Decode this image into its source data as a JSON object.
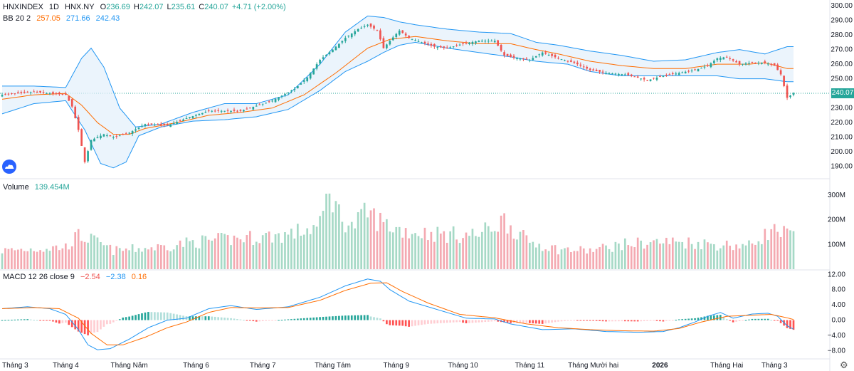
{
  "header": {
    "symbol": "HNXINDEX",
    "interval": "1D",
    "exchange": "HNX.NY",
    "open": "236.69",
    "high": "242.07",
    "low": "235.61",
    "close": "240.07",
    "change": "+4.71 (+2.00%)"
  },
  "bb_legend": {
    "label": "BB 20 2",
    "basis": "257.05",
    "upper": "271.66",
    "lower": "242.43"
  },
  "volume_legend": {
    "label": "Volume",
    "value": "139.454M"
  },
  "macd_legend": {
    "label": "MACD 12 26 close 9",
    "hist": "−2.54",
    "macd": "−2.38",
    "signal": "0.16"
  },
  "last_price_label": "240.07",
  "colors": {
    "up": "#26a69a",
    "down": "#ef5350",
    "bb_fill": "#e3f0fb",
    "bb_band": "#2196f3",
    "bb_basis": "#ff6d00",
    "macd_line": "#2196f3",
    "signal_line": "#ff6d00",
    "vol_up": "#a6d9c6",
    "vol_down": "#f4a9b1"
  },
  "chart_data": [
    {
      "type": "candlestick",
      "title": "",
      "price_axis": [
        300,
        290,
        280,
        270,
        260,
        250,
        240,
        230,
        220,
        210,
        200,
        190
      ],
      "price_axis_labels": [
        "300.00",
        "290.00",
        "280.00",
        "270.00",
        "260.00",
        "250.00",
        "240.00",
        "230.00",
        "220.00",
        "210.00",
        "200.00",
        "190.00"
      ],
      "ylim": [
        184,
        302
      ],
      "x_labels": [
        "Tháng 3",
        "Tháng 4",
        "Tháng Năm",
        "Tháng 6",
        "Tháng 7",
        "Tháng Tám",
        "Tháng 9",
        "Tháng 10",
        "Tháng 11",
        "Tháng Mười hai",
        "2026",
        "Tháng Hai",
        "Tháng 3"
      ],
      "x_label_index": [
        0,
        20,
        40,
        61,
        82,
        104,
        124,
        145,
        166,
        186,
        207,
        228,
        243
      ],
      "bar_count": 250,
      "close_keypoints": [
        [
          0,
          239
        ],
        [
          10,
          241
        ],
        [
          20,
          239
        ],
        [
          22,
          231
        ],
        [
          24,
          215
        ],
        [
          26,
          193
        ],
        [
          28,
          208
        ],
        [
          32,
          212
        ],
        [
          35,
          210
        ],
        [
          40,
          213
        ],
        [
          45,
          219
        ],
        [
          52,
          218
        ],
        [
          58,
          223
        ],
        [
          65,
          228
        ],
        [
          75,
          228
        ],
        [
          85,
          235
        ],
        [
          92,
          243
        ],
        [
          96,
          251
        ],
        [
          100,
          263
        ],
        [
          104,
          270
        ],
        [
          108,
          278
        ],
        [
          112,
          284
        ],
        [
          115,
          287
        ],
        [
          118,
          283
        ],
        [
          120,
          271
        ],
        [
          122,
          276
        ],
        [
          125,
          283
        ],
        [
          128,
          278
        ],
        [
          132,
          275
        ],
        [
          136,
          272
        ],
        [
          140,
          271
        ],
        [
          145,
          274
        ],
        [
          150,
          276
        ],
        [
          155,
          276
        ],
        [
          158,
          266
        ],
        [
          162,
          264
        ],
        [
          166,
          263
        ],
        [
          170,
          268
        ],
        [
          175,
          264
        ],
        [
          180,
          261
        ],
        [
          185,
          256
        ],
        [
          190,
          254
        ],
        [
          196,
          253
        ],
        [
          203,
          249
        ],
        [
          208,
          252
        ],
        [
          213,
          254
        ],
        [
          218,
          256
        ],
        [
          222,
          259
        ],
        [
          225,
          264
        ],
        [
          228,
          265
        ],
        [
          232,
          260
        ],
        [
          236,
          261
        ],
        [
          240,
          261
        ],
        [
          243,
          259
        ],
        [
          245,
          253
        ],
        [
          247,
          237
        ],
        [
          249,
          240.07
        ]
      ],
      "bb_upper_keypoints": [
        [
          0,
          245
        ],
        [
          10,
          245
        ],
        [
          20,
          244
        ],
        [
          25,
          264
        ],
        [
          28,
          271
        ],
        [
          32,
          258
        ],
        [
          37,
          230
        ],
        [
          42,
          217
        ],
        [
          50,
          219
        ],
        [
          60,
          227
        ],
        [
          70,
          233
        ],
        [
          80,
          233
        ],
        [
          90,
          239
        ],
        [
          100,
          260
        ],
        [
          108,
          282
        ],
        [
          115,
          293
        ],
        [
          120,
          292
        ],
        [
          125,
          289
        ],
        [
          130,
          287
        ],
        [
          140,
          284
        ],
        [
          150,
          282
        ],
        [
          160,
          281
        ],
        [
          168,
          275
        ],
        [
          175,
          273
        ],
        [
          185,
          269
        ],
        [
          195,
          266
        ],
        [
          205,
          262
        ],
        [
          215,
          263
        ],
        [
          225,
          268
        ],
        [
          232,
          270
        ],
        [
          240,
          267
        ],
        [
          247,
          272
        ]
      ],
      "bb_basis_keypoints": [
        [
          0,
          236
        ],
        [
          10,
          239
        ],
        [
          20,
          240
        ],
        [
          25,
          232
        ],
        [
          30,
          220
        ],
        [
          35,
          212
        ],
        [
          40,
          212
        ],
        [
          45,
          216
        ],
        [
          55,
          220
        ],
        [
          65,
          225
        ],
        [
          75,
          227
        ],
        [
          85,
          230
        ],
        [
          95,
          239
        ],
        [
          105,
          254
        ],
        [
          115,
          271
        ],
        [
          122,
          277
        ],
        [
          130,
          279
        ],
        [
          140,
          276
        ],
        [
          150,
          274
        ],
        [
          160,
          274
        ],
        [
          168,
          270
        ],
        [
          175,
          267
        ],
        [
          185,
          262
        ],
        [
          195,
          259
        ],
        [
          205,
          257
        ],
        [
          215,
          257
        ],
        [
          225,
          260
        ],
        [
          235,
          260
        ],
        [
          240,
          261
        ],
        [
          247,
          257
        ]
      ],
      "bb_lower_keypoints": [
        [
          0,
          226
        ],
        [
          10,
          233
        ],
        [
          20,
          235
        ],
        [
          26,
          215
        ],
        [
          31,
          192
        ],
        [
          35,
          189
        ],
        [
          39,
          193
        ],
        [
          43,
          211
        ],
        [
          50,
          217
        ],
        [
          60,
          221
        ],
        [
          70,
          222
        ],
        [
          80,
          224
        ],
        [
          90,
          229
        ],
        [
          100,
          242
        ],
        [
          108,
          255
        ],
        [
          115,
          262
        ],
        [
          120,
          268
        ],
        [
          125,
          273
        ],
        [
          130,
          275
        ],
        [
          140,
          271
        ],
        [
          150,
          268
        ],
        [
          160,
          265
        ],
        [
          168,
          262
        ],
        [
          178,
          260
        ],
        [
          185,
          255
        ],
        [
          195,
          252
        ],
        [
          205,
          252
        ],
        [
          215,
          252
        ],
        [
          225,
          252
        ],
        [
          232,
          250
        ],
        [
          240,
          250
        ],
        [
          247,
          248
        ]
      ]
    },
    {
      "type": "bar",
      "title": "",
      "series_name": "",
      "volume_axis_labels": [
        "300M",
        "200M",
        "100M"
      ],
      "volume_axis_values": [
        300,
        200,
        100
      ],
      "ylim": [
        0,
        335
      ],
      "volume_keypoints": [
        [
          0,
          75
        ],
        [
          20,
          90
        ],
        [
          24,
          135
        ],
        [
          28,
          120
        ],
        [
          35,
          75
        ],
        [
          40,
          80
        ],
        [
          50,
          90
        ],
        [
          60,
          110
        ],
        [
          70,
          120
        ],
        [
          80,
          130
        ],
        [
          90,
          140
        ],
        [
          100,
          175
        ],
        [
          103,
          325
        ],
        [
          106,
          225
        ],
        [
          110,
          170
        ],
        [
          115,
          230
        ],
        [
          120,
          185
        ],
        [
          125,
          160
        ],
        [
          130,
          150
        ],
        [
          140,
          140
        ],
        [
          150,
          140
        ],
        [
          158,
          200
        ],
        [
          165,
          115
        ],
        [
          175,
          80
        ],
        [
          185,
          75
        ],
        [
          195,
          100
        ],
        [
          205,
          110
        ],
        [
          215,
          110
        ],
        [
          225,
          100
        ],
        [
          235,
          95
        ],
        [
          240,
          140
        ],
        [
          243,
          155
        ],
        [
          247,
          140
        ]
      ]
    },
    {
      "type": "line",
      "title": "",
      "macd_axis_labels": [
        "12.00",
        "8.00",
        "4.00",
        "0.00",
        "−4.00",
        "−8.00"
      ],
      "macd_axis_values": [
        12,
        8,
        4,
        0,
        -4,
        -8
      ],
      "ylim": [
        -10,
        13
      ],
      "macd_keypoints": [
        [
          0,
          3
        ],
        [
          8,
          3.5
        ],
        [
          15,
          3
        ],
        [
          20,
          1.5
        ],
        [
          24,
          -2.5
        ],
        [
          27,
          -6.5
        ],
        [
          30,
          -7.8
        ],
        [
          34,
          -7.5
        ],
        [
          40,
          -5
        ],
        [
          46,
          -2
        ],
        [
          52,
          0
        ],
        [
          58,
          0.5
        ],
        [
          65,
          3
        ],
        [
          72,
          3.8
        ],
        [
          80,
          2.8
        ],
        [
          90,
          3.5
        ],
        [
          100,
          6
        ],
        [
          108,
          9
        ],
        [
          115,
          10.8
        ],
        [
          119,
          10.2
        ],
        [
          122,
          8
        ],
        [
          128,
          5
        ],
        [
          136,
          3
        ],
        [
          146,
          0.5
        ],
        [
          155,
          0.3
        ],
        [
          160,
          -1
        ],
        [
          170,
          -2.5
        ],
        [
          180,
          -2.3
        ],
        [
          190,
          -3
        ],
        [
          200,
          -3.2
        ],
        [
          208,
          -3
        ],
        [
          213,
          -2
        ],
        [
          218,
          -0.5
        ],
        [
          222,
          1
        ],
        [
          226,
          2
        ],
        [
          230,
          0.5
        ],
        [
          236,
          1.6
        ],
        [
          241,
          1.8
        ],
        [
          244,
          1
        ],
        [
          247,
          -1.5
        ],
        [
          249,
          -2.38
        ]
      ],
      "signal_keypoints": [
        [
          0,
          3
        ],
        [
          10,
          3.3
        ],
        [
          18,
          3
        ],
        [
          24,
          0.5
        ],
        [
          28,
          -3.5
        ],
        [
          33,
          -6.5
        ],
        [
          38,
          -6.5
        ],
        [
          45,
          -4.5
        ],
        [
          52,
          -2
        ],
        [
          58,
          -0.5
        ],
        [
          65,
          2
        ],
        [
          72,
          3.3
        ],
        [
          80,
          3.2
        ],
        [
          90,
          3.3
        ],
        [
          100,
          5.2
        ],
        [
          108,
          7.8
        ],
        [
          116,
          9.7
        ],
        [
          121,
          9.8
        ],
        [
          126,
          7.5
        ],
        [
          134,
          4.5
        ],
        [
          144,
          1.5
        ],
        [
          155,
          0.6
        ],
        [
          165,
          -1
        ],
        [
          175,
          -2
        ],
        [
          185,
          -2.5
        ],
        [
          195,
          -2.8
        ],
        [
          205,
          -2.9
        ],
        [
          213,
          -2.2
        ],
        [
          220,
          -0.5
        ],
        [
          228,
          1
        ],
        [
          236,
          1.3
        ],
        [
          242,
          1.5
        ],
        [
          247,
          0.6
        ],
        [
          249,
          0.16
        ]
      ]
    }
  ]
}
